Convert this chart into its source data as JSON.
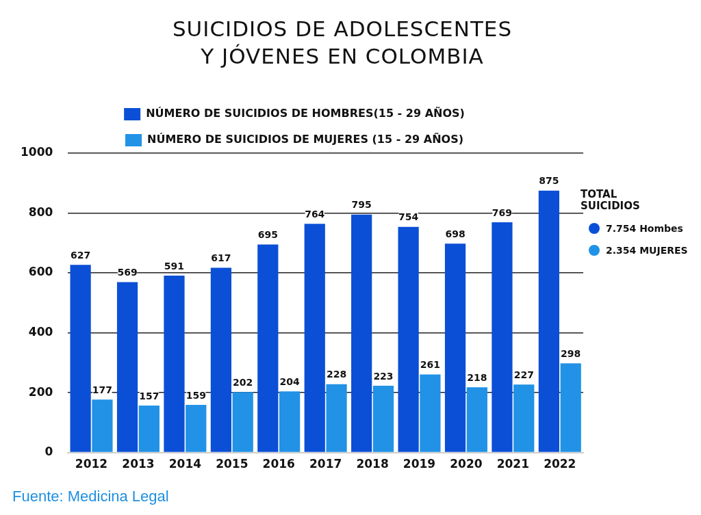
{
  "chart_data": {
    "type": "bar",
    "title": "SUICIDIOS DE ADOLESCENTES Y JÓVENES EN COLOMBIA",
    "categories": [
      "2012",
      "2013",
      "2014",
      "2015",
      "2016",
      "2017",
      "2018",
      "2019",
      "2020",
      "2021",
      "2022"
    ],
    "series": [
      {
        "name": "NÚMERO DE SUICIDIOS DE HOMBRES(15 - 29 AÑOS)",
        "color": "#0b4fd6",
        "values": [
          627,
          569,
          591,
          617,
          695,
          764,
          795,
          754,
          698,
          769,
          875
        ]
      },
      {
        "name": "NÚMERO DE SUICIDIOS DE MUJERES (15 - 29 AÑOS)",
        "color": "#2192e6",
        "values": [
          177,
          157,
          159,
          202,
          204,
          228,
          223,
          261,
          218,
          227,
          298
        ]
      }
    ],
    "ylim": [
      0,
      1000
    ],
    "yticks": [
      0,
      200,
      400,
      600,
      800,
      1000
    ],
    "grid": "y",
    "legend": "top",
    "data_labels": true,
    "annotations": [
      "TOTAL SUICIDIOS",
      "7.754 Hombes",
      "2.354 MUJERES",
      "Fuente: Medicina Legal"
    ]
  }
}
